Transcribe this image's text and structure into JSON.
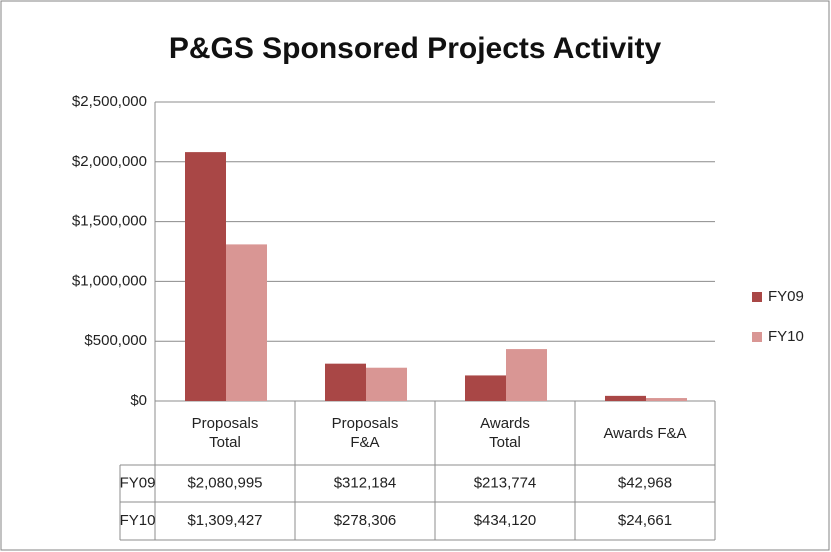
{
  "chart_data": {
    "type": "bar",
    "title": "P&GS Sponsored Projects Activity",
    "categories": [
      "Proposals\nTotal",
      "Proposals\nF&A",
      "Awards\nTotal",
      "Awards F&A"
    ],
    "series": [
      {
        "name": "FY09",
        "color": "#a94746",
        "values": [
          2080995,
          312184,
          213774,
          42968
        ],
        "value_labels": [
          "$2,080,995",
          "$312,184",
          "$213,774",
          "$42,968"
        ]
      },
      {
        "name": "FY10",
        "color": "#d99694",
        "values": [
          1309427,
          278306,
          434120,
          24661
        ],
        "value_labels": [
          "$1,309,427",
          "$278,306",
          "$434,120",
          "$24,661"
        ]
      }
    ],
    "ylim": [
      0,
      2500000
    ],
    "yticks": [
      {
        "value": 0,
        "label": "$0"
      },
      {
        "value": 500000,
        "label": "$500,000"
      },
      {
        "value": 1000000,
        "label": "$1,000,000"
      },
      {
        "value": 1500000,
        "label": "$1,500,000"
      },
      {
        "value": 2000000,
        "label": "$2,000,000"
      },
      {
        "value": 2500000,
        "label": "$2,500,000"
      }
    ],
    "grid": true,
    "legend": "right"
  }
}
